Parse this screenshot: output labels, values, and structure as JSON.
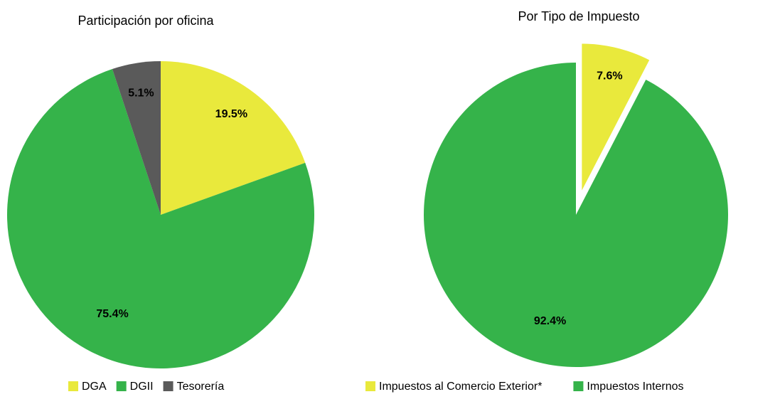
{
  "chart_data": [
    {
      "type": "pie",
      "title": "Participación por oficina",
      "categories": [
        "DGA",
        "DGII",
        "Tesorería"
      ],
      "values": [
        19.5,
        75.4,
        5.1
      ],
      "value_labels": [
        "19.5%",
        "75.4%",
        "5.1%"
      ],
      "colors": [
        "#e9e93c",
        "#35b34a",
        "#5a5a5a"
      ],
      "legend": "bottom"
    },
    {
      "type": "pie",
      "title": "Por Tipo de Impuesto",
      "categories": [
        "Impuestos al Comercio Exterior*",
        "Impuestos Internos"
      ],
      "values": [
        7.6,
        92.4
      ],
      "value_labels": [
        "7.6%",
        "92.4%"
      ],
      "colors": [
        "#e9e93c",
        "#35b34a"
      ],
      "legend": "bottom"
    }
  ]
}
